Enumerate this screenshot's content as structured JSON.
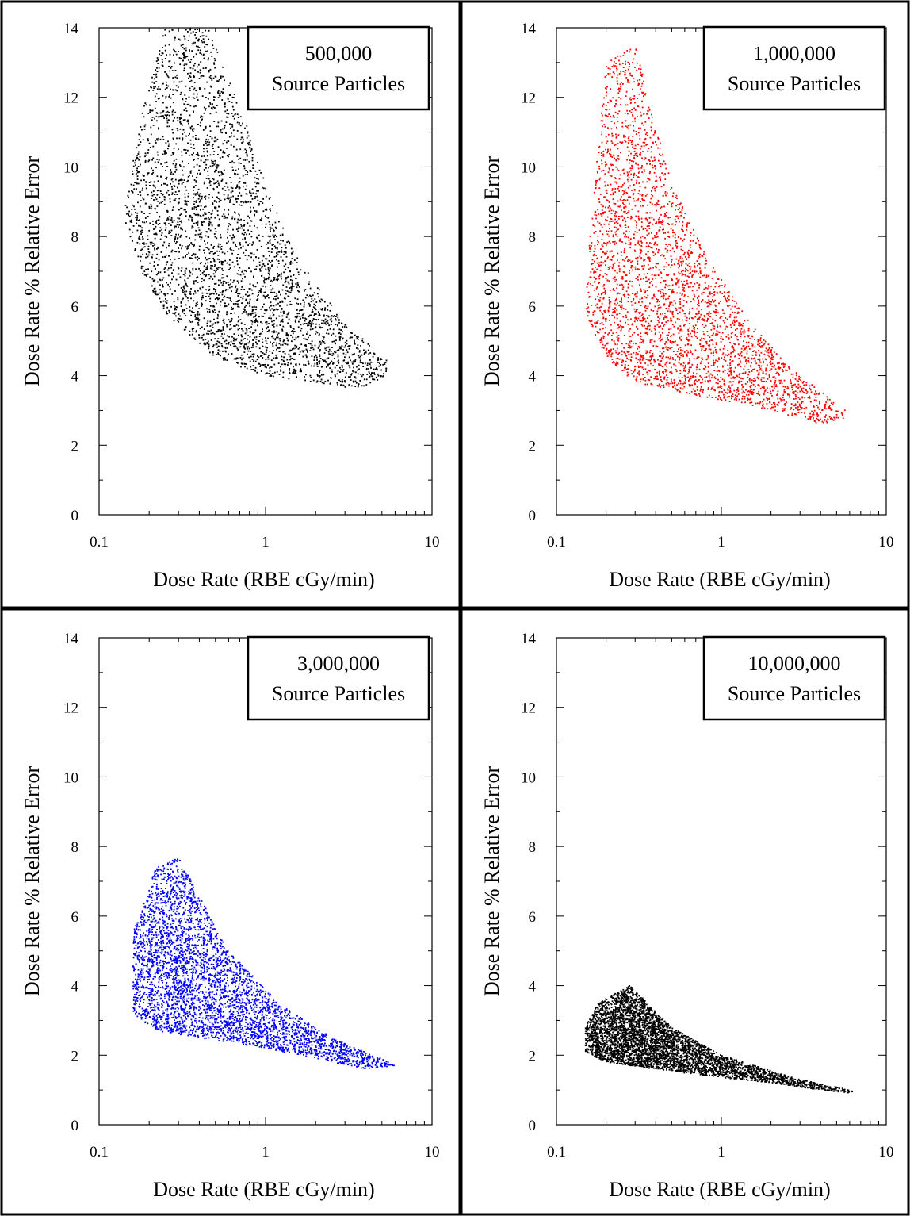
{
  "figure": {
    "panels": [
      {
        "legend": {
          "line1": "500,000",
          "line2": "Source Particles"
        },
        "point_color": "#000000",
        "sample_size": 3600,
        "cloud": {
          "lower_x_min": 0.21,
          "slope_min": 0.5,
          "slope_max": 0.85,
          "upper_x_max": 0.45
        }
      },
      {
        "legend": {
          "line1": "1,000,000",
          "line2": "Source Particles"
        },
        "point_color": "#ff0000",
        "sample_size": 3400,
        "cloud": {
          "lower_x_min": 0.18,
          "slope_min": 0.55,
          "slope_max": 0.9,
          "upper_x_max": 0.35
        }
      },
      {
        "legend": {
          "line1": "3,000,000",
          "line2": "Source Particles"
        },
        "point_color": "#0000ff",
        "sample_size": 4000,
        "cloud": {
          "lower_x_min": 0.22,
          "slope_min": 0.45,
          "slope_max": 0.8,
          "upper_x_max": 0.32
        }
      },
      {
        "legend": {
          "line1": "10,000,000",
          "line2": "Source Particles"
        },
        "point_color": "#000000",
        "sample_size": 4500,
        "cloud": {
          "lower_x_min": 0.2,
          "slope_min": 0.42,
          "slope_max": 0.68,
          "upper_x_max": 0.3
        }
      }
    ]
  },
  "chart_data": [
    {
      "type": "scatter",
      "title": "",
      "legend_text": "500,000 Source Particles",
      "xlabel": "Dose Rate (RBE cGy/min)",
      "ylabel": "Dose Rate % Relative Error",
      "x_scale": "log",
      "xlim": [
        0.1,
        10
      ],
      "ylim": [
        0,
        14
      ],
      "x_ticks": [
        "0.1",
        "1",
        "10"
      ],
      "y_ticks": [
        "0",
        "2",
        "4",
        "6",
        "8",
        "10",
        "12",
        "14"
      ],
      "legend_position": "top-right",
      "grid": false,
      "point_cloud_outline": [
        [
          0.14,
          8.6
        ],
        [
          0.18,
          7.0
        ],
        [
          0.25,
          5.8
        ],
        [
          0.5,
          4.5
        ],
        [
          1.0,
          4.0
        ],
        [
          2.0,
          3.8
        ],
        [
          3.5,
          3.6
        ],
        [
          5.5,
          4.0
        ],
        [
          5.5,
          4.4
        ],
        [
          3.0,
          5.5
        ],
        [
          1.5,
          7.5
        ],
        [
          1.0,
          9.5
        ],
        [
          0.8,
          11.0
        ],
        [
          0.5,
          13.5
        ],
        [
          0.45,
          14.0
        ],
        [
          0.25,
          14.0
        ],
        [
          0.18,
          11.5
        ]
      ]
    },
    {
      "type": "scatter",
      "title": "",
      "legend_text": "1,000,000 Source Particles",
      "xlabel": "Dose Rate (RBE cGy/min)",
      "ylabel": "Dose Rate % Relative Error",
      "x_scale": "log",
      "xlim": [
        0.1,
        10
      ],
      "ylim": [
        0,
        14
      ],
      "x_ticks": [
        "0.1",
        "1",
        "10"
      ],
      "y_ticks": [
        "0",
        "2",
        "4",
        "6",
        "8",
        "10",
        "12",
        "14"
      ],
      "legend_position": "top-right",
      "grid": false,
      "point_cloud_outline": [
        [
          0.15,
          5.8
        ],
        [
          0.2,
          4.5
        ],
        [
          0.3,
          3.8
        ],
        [
          0.6,
          3.5
        ],
        [
          1.0,
          3.3
        ],
        [
          2.0,
          3.0
        ],
        [
          4.0,
          2.6
        ],
        [
          5.8,
          2.8
        ],
        [
          5.8,
          3.0
        ],
        [
          3.0,
          4.0
        ],
        [
          1.5,
          5.5
        ],
        [
          0.8,
          7.5
        ],
        [
          0.5,
          9.5
        ],
        [
          0.3,
          13.5
        ],
        [
          0.2,
          13.0
        ],
        [
          0.16,
          8.0
        ]
      ]
    },
    {
      "type": "scatter",
      "title": "",
      "legend_text": "3,000,000 Source Particles",
      "xlabel": "Dose Rate (RBE cGy/min)",
      "ylabel": "Dose Rate % Relative Error",
      "x_scale": "log",
      "xlim": [
        0.1,
        10
      ],
      "ylim": [
        0,
        14
      ],
      "x_ticks": [
        "0.1",
        "1",
        "10"
      ],
      "y_ticks": [
        "0",
        "2",
        "4",
        "6",
        "8",
        "10",
        "12",
        "14"
      ],
      "legend_position": "top-right",
      "grid": false,
      "point_cloud_outline": [
        [
          0.16,
          3.2
        ],
        [
          0.22,
          2.7
        ],
        [
          0.4,
          2.5
        ],
        [
          1.0,
          2.2
        ],
        [
          2.0,
          1.9
        ],
        [
          4.0,
          1.6
        ],
        [
          6.0,
          1.7
        ],
        [
          5.0,
          1.9
        ],
        [
          2.5,
          2.5
        ],
        [
          1.2,
          3.5
        ],
        [
          0.6,
          5.0
        ],
        [
          0.3,
          7.7
        ],
        [
          0.22,
          7.4
        ],
        [
          0.16,
          5.5
        ]
      ]
    },
    {
      "type": "scatter",
      "title": "",
      "legend_text": "10,000,000 Source Particles",
      "xlabel": "Dose Rate (RBE cGy/min)",
      "ylabel": "Dose Rate % Relative Error",
      "x_scale": "log",
      "xlim": [
        0.1,
        10
      ],
      "ylim": [
        0,
        14
      ],
      "x_ticks": [
        "0.1",
        "1",
        "10"
      ],
      "y_ticks": [
        "0",
        "2",
        "4",
        "6",
        "8",
        "10",
        "12",
        "14"
      ],
      "legend_position": "top-right",
      "grid": false,
      "point_cloud_outline": [
        [
          0.15,
          2.1
        ],
        [
          0.2,
          1.8
        ],
        [
          0.4,
          1.6
        ],
        [
          1.0,
          1.35
        ],
        [
          2.0,
          1.2
        ],
        [
          4.0,
          1.0
        ],
        [
          6.5,
          0.9
        ],
        [
          6.0,
          1.0
        ],
        [
          3.0,
          1.3
        ],
        [
          1.0,
          2.0
        ],
        [
          0.5,
          2.8
        ],
        [
          0.28,
          4.0
        ],
        [
          0.18,
          3.5
        ],
        [
          0.15,
          2.8
        ]
      ]
    }
  ]
}
